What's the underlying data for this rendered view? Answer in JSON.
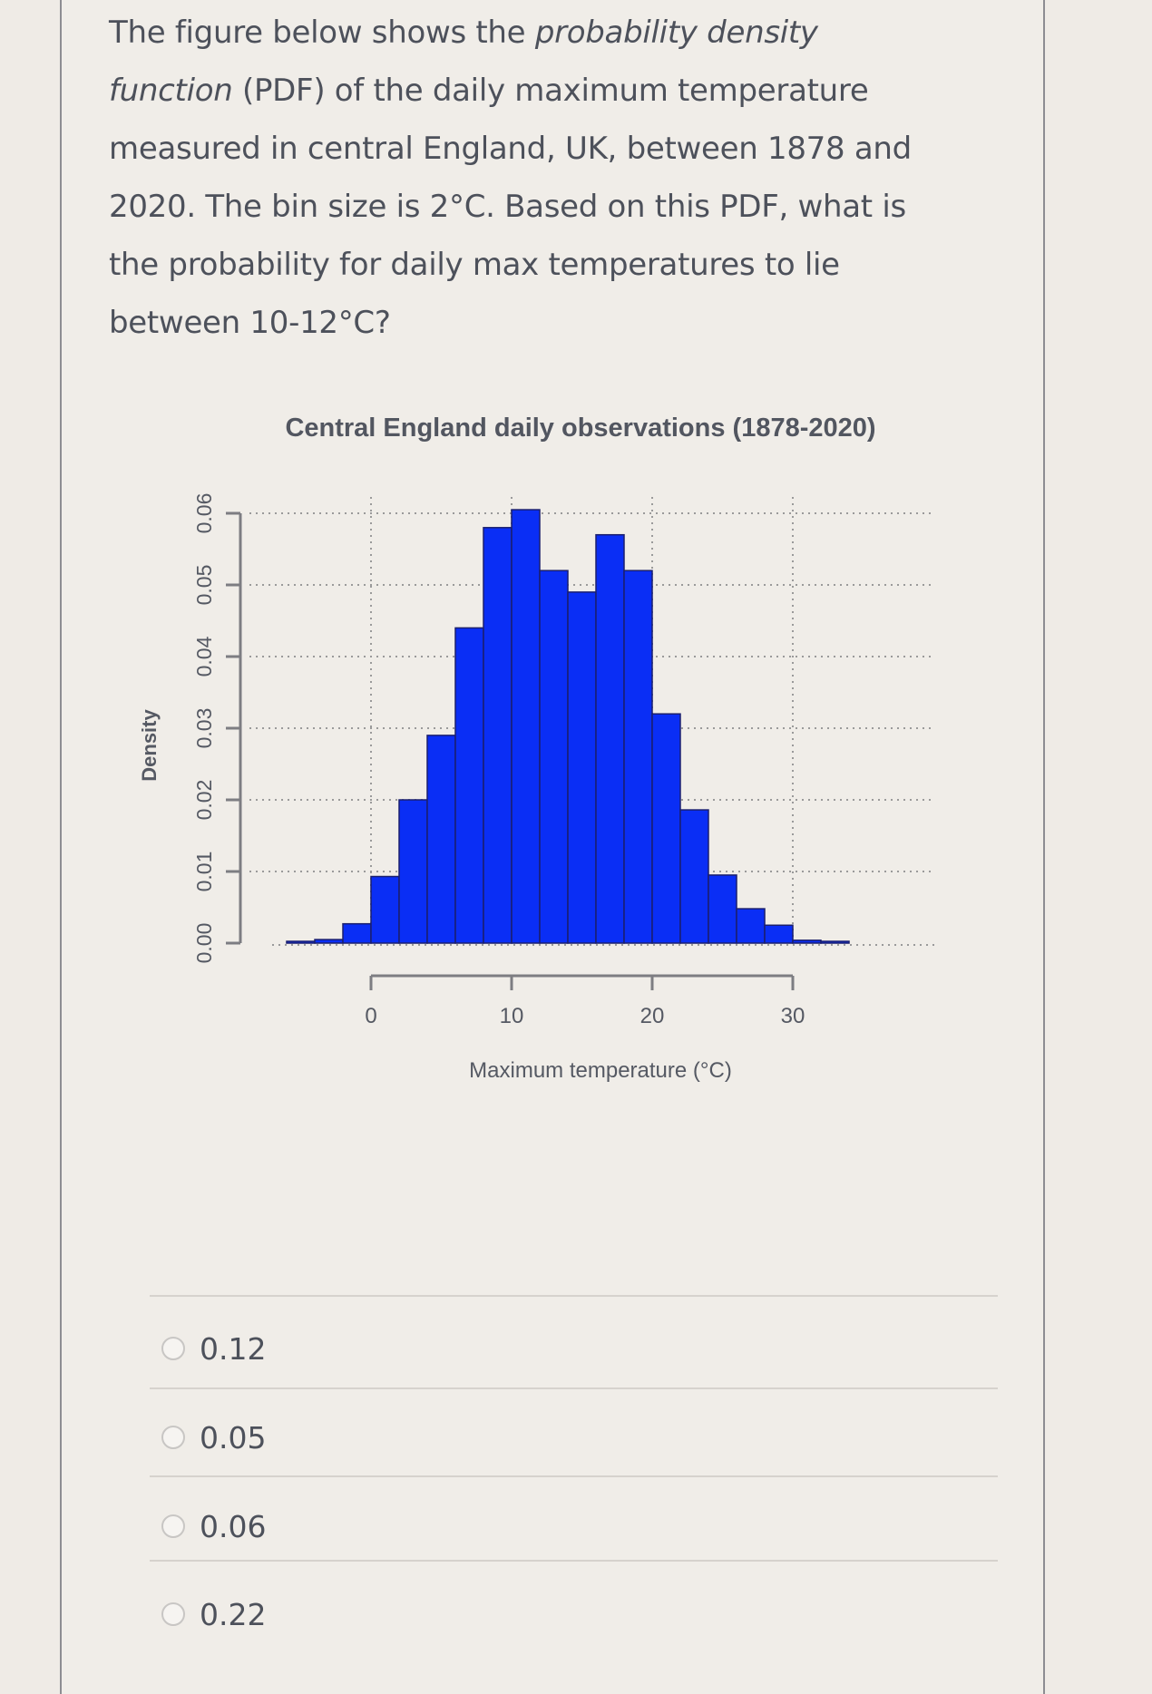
{
  "question": {
    "lines": [
      {
        "parts": [
          {
            "t": "The figure below shows the ",
            "i": false
          },
          {
            "t": "probability density",
            "i": true
          }
        ]
      },
      {
        "parts": [
          {
            "t": "function",
            "i": true
          },
          {
            "t": " (PDF) of the daily maximum temperature",
            "i": false
          }
        ]
      },
      {
        "parts": [
          {
            "t": "measured in central England, UK, between 1878 and",
            "i": false
          }
        ]
      },
      {
        "parts": [
          {
            "t": "2020. The bin size is 2°C. Based on this PDF, what is",
            "i": false
          }
        ]
      },
      {
        "parts": [
          {
            "t": "the probability for daily max temperatures to lie",
            "i": false
          }
        ]
      },
      {
        "parts": [
          {
            "t": "between 10-12°C?",
            "i": false
          }
        ]
      }
    ]
  },
  "options": [
    {
      "label": "0.12",
      "selected": false
    },
    {
      "label": "0.05",
      "selected": false
    },
    {
      "label": "0.06",
      "selected": false
    },
    {
      "label": "0.22",
      "selected": false
    }
  ],
  "colors": {
    "bar_fill": "#0a2ef5",
    "bar_edge": "#1a1f6e",
    "axis": "#7d7d82",
    "grid": "#9a9a9a",
    "text": "#4d515b"
  },
  "chart_data": {
    "type": "bar",
    "subtype": "histogram",
    "title": "Central England daily observations (1878-2020)",
    "xlabel": "Maximum temperature (°C)",
    "ylabel": "Density",
    "bin_size": 2,
    "bin_edges": [
      -6,
      -4,
      -2,
      0,
      2,
      4,
      6,
      8,
      10,
      12,
      14,
      16,
      18,
      20,
      22,
      24,
      26,
      28,
      30,
      32,
      34
    ],
    "categories": [
      "-6–-4",
      "-4–-2",
      "-2–0",
      "0–2",
      "2–4",
      "4–6",
      "6–8",
      "8–10",
      "10–12",
      "12–14",
      "14–16",
      "16–18",
      "18–20",
      "20–22",
      "22–24",
      "24–26",
      "26–28",
      "28–30",
      "30–32",
      "32–34"
    ],
    "values": [
      0.0002,
      0.0005,
      0.0027,
      0.0093,
      0.02,
      0.029,
      0.044,
      0.058,
      0.0605,
      0.052,
      0.049,
      0.057,
      0.052,
      0.032,
      0.0186,
      0.0095,
      0.0048,
      0.0025,
      0.0004,
      0.0002
    ],
    "xticks": [
      0,
      10,
      20,
      30
    ],
    "yticks": [
      0.0,
      0.01,
      0.02,
      0.03,
      0.04,
      0.05,
      0.06
    ],
    "ytick_labels": [
      "0.00",
      "0.01",
      "0.02",
      "0.03",
      "0.04",
      "0.05",
      "0.06"
    ],
    "xtick_labels": [
      "0",
      "10",
      "20",
      "30"
    ],
    "xlim": [
      -8,
      38
    ],
    "ylim": [
      0,
      0.06
    ],
    "grid": true,
    "grid_style": "dotted",
    "legend": null
  }
}
